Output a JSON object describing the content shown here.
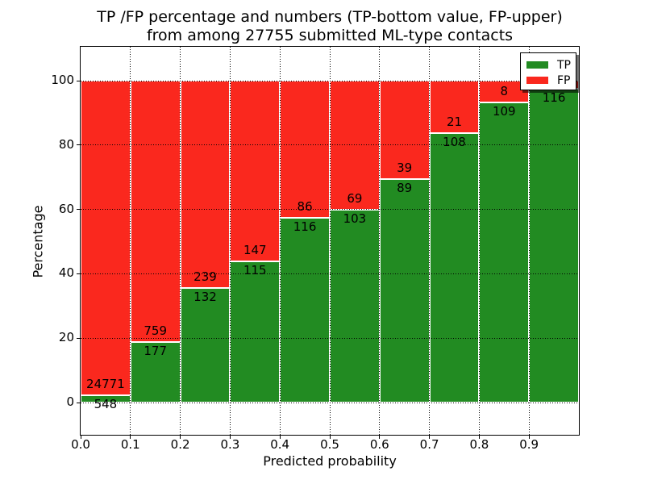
{
  "title": {
    "line1": "TP /FP percentage and numbers (TP-bottom value, FP-upper)",
    "line2": "from among 27755 submitted ML-type contacts"
  },
  "axes": {
    "xlabel": "Predicted probability",
    "ylabel": "Percentage",
    "xtick_labels": [
      "0.0",
      "0.1",
      "0.2",
      "0.3",
      "0.4",
      "0.5",
      "0.6",
      "0.7",
      "0.8",
      "0.9"
    ],
    "ytick_labels": [
      "0",
      "20",
      "40",
      "60",
      "80",
      "100"
    ],
    "ytick_values": [
      0,
      20,
      40,
      60,
      80,
      100
    ]
  },
  "legend": {
    "items": [
      {
        "label": "TP",
        "color": "#228b22"
      },
      {
        "label": "FP",
        "color": "#fa281e"
      }
    ]
  },
  "colors": {
    "tp": "#228b22",
    "fp": "#fa281e",
    "bar_edge": "#ffffff",
    "grid": "#000000",
    "spine": "#000000",
    "background": "#ffffff"
  },
  "chart_data": {
    "type": "bar",
    "stacked": true,
    "title": "TP /FP percentage and numbers (TP-bottom value, FP-upper) from among 27755 submitted ML-type contacts",
    "xlabel": "Predicted probability",
    "ylabel": "Percentage",
    "xlim": [
      0.0,
      1.0
    ],
    "ylim": [
      -10,
      110.5
    ],
    "grid": true,
    "grid_style": "dotted",
    "legend_position": "upper right",
    "bin_edges": [
      0.0,
      0.1,
      0.2,
      0.3,
      0.4,
      0.5,
      0.6,
      0.7,
      0.8,
      0.9,
      1.0
    ],
    "categories": [
      "0.0-0.1",
      "0.1-0.2",
      "0.2-0.3",
      "0.3-0.4",
      "0.4-0.5",
      "0.5-0.6",
      "0.6-0.7",
      "0.7-0.8",
      "0.8-0.9",
      "0.9-1.0"
    ],
    "series": [
      {
        "name": "TP",
        "color": "#228b22",
        "counts": [
          548,
          177,
          132,
          115,
          116,
          103,
          89,
          108,
          109,
          116
        ],
        "pct": [
          2.16,
          18.91,
          35.58,
          43.89,
          57.43,
          59.88,
          69.53,
          83.72,
          93.16,
          97.48
        ]
      },
      {
        "name": "FP",
        "color": "#fa281e",
        "counts": [
          24771,
          759,
          239,
          147,
          86,
          69,
          39,
          21,
          8,
          3
        ],
        "pct": [
          97.84,
          81.09,
          64.42,
          56.11,
          42.57,
          40.12,
          30.47,
          16.28,
          6.84,
          2.52
        ]
      }
    ],
    "total_contacts": 27755,
    "note_last_fp_label": "hidden behind legend"
  }
}
